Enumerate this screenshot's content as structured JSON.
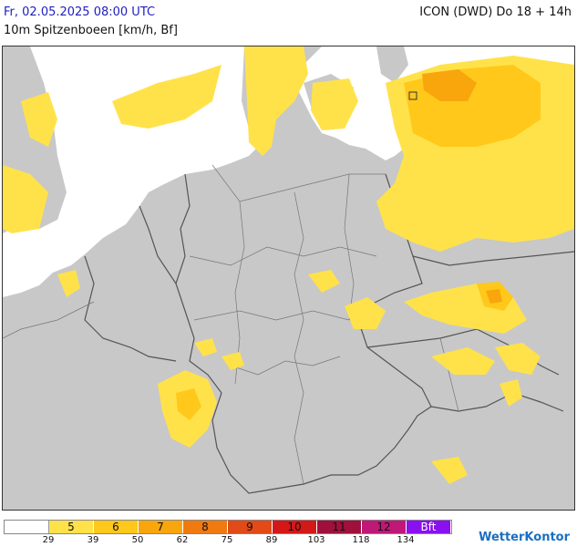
{
  "header": {
    "date_label": "Fr, 02.05.2025 08:00 UTC",
    "model_label": "ICON (DWD) Do 18 + 14h",
    "parameter_label": "10m Spitzenboeen [km/h, Bf]"
  },
  "legend": {
    "cells": [
      {
        "label": "",
        "color": "#ffffff"
      },
      {
        "label": "5",
        "color": "#ffe24a"
      },
      {
        "label": "6",
        "color": "#ffc81a"
      },
      {
        "label": "7",
        "color": "#f8a60c"
      },
      {
        "label": "8",
        "color": "#f07a10"
      },
      {
        "label": "9",
        "color": "#e24a18"
      },
      {
        "label": "10",
        "color": "#d41818"
      },
      {
        "label": "11",
        "color": "#a0103c"
      },
      {
        "label": "12",
        "color": "#c01878"
      },
      {
        "label": "Bft",
        "color": "#8a10f0"
      }
    ],
    "ticks": [
      "29",
      "39",
      "50",
      "62",
      "75",
      "89",
      "103",
      "118",
      "134"
    ]
  },
  "brand": {
    "name": "WetterKontor"
  },
  "colors": {
    "land": "#c8c8c8",
    "water": "#ffffff",
    "border": "#555555",
    "bf5": "#ffe24a",
    "bf6": "#ffc81a",
    "bf7": "#f8a60c",
    "bf8": "#f07a10"
  }
}
